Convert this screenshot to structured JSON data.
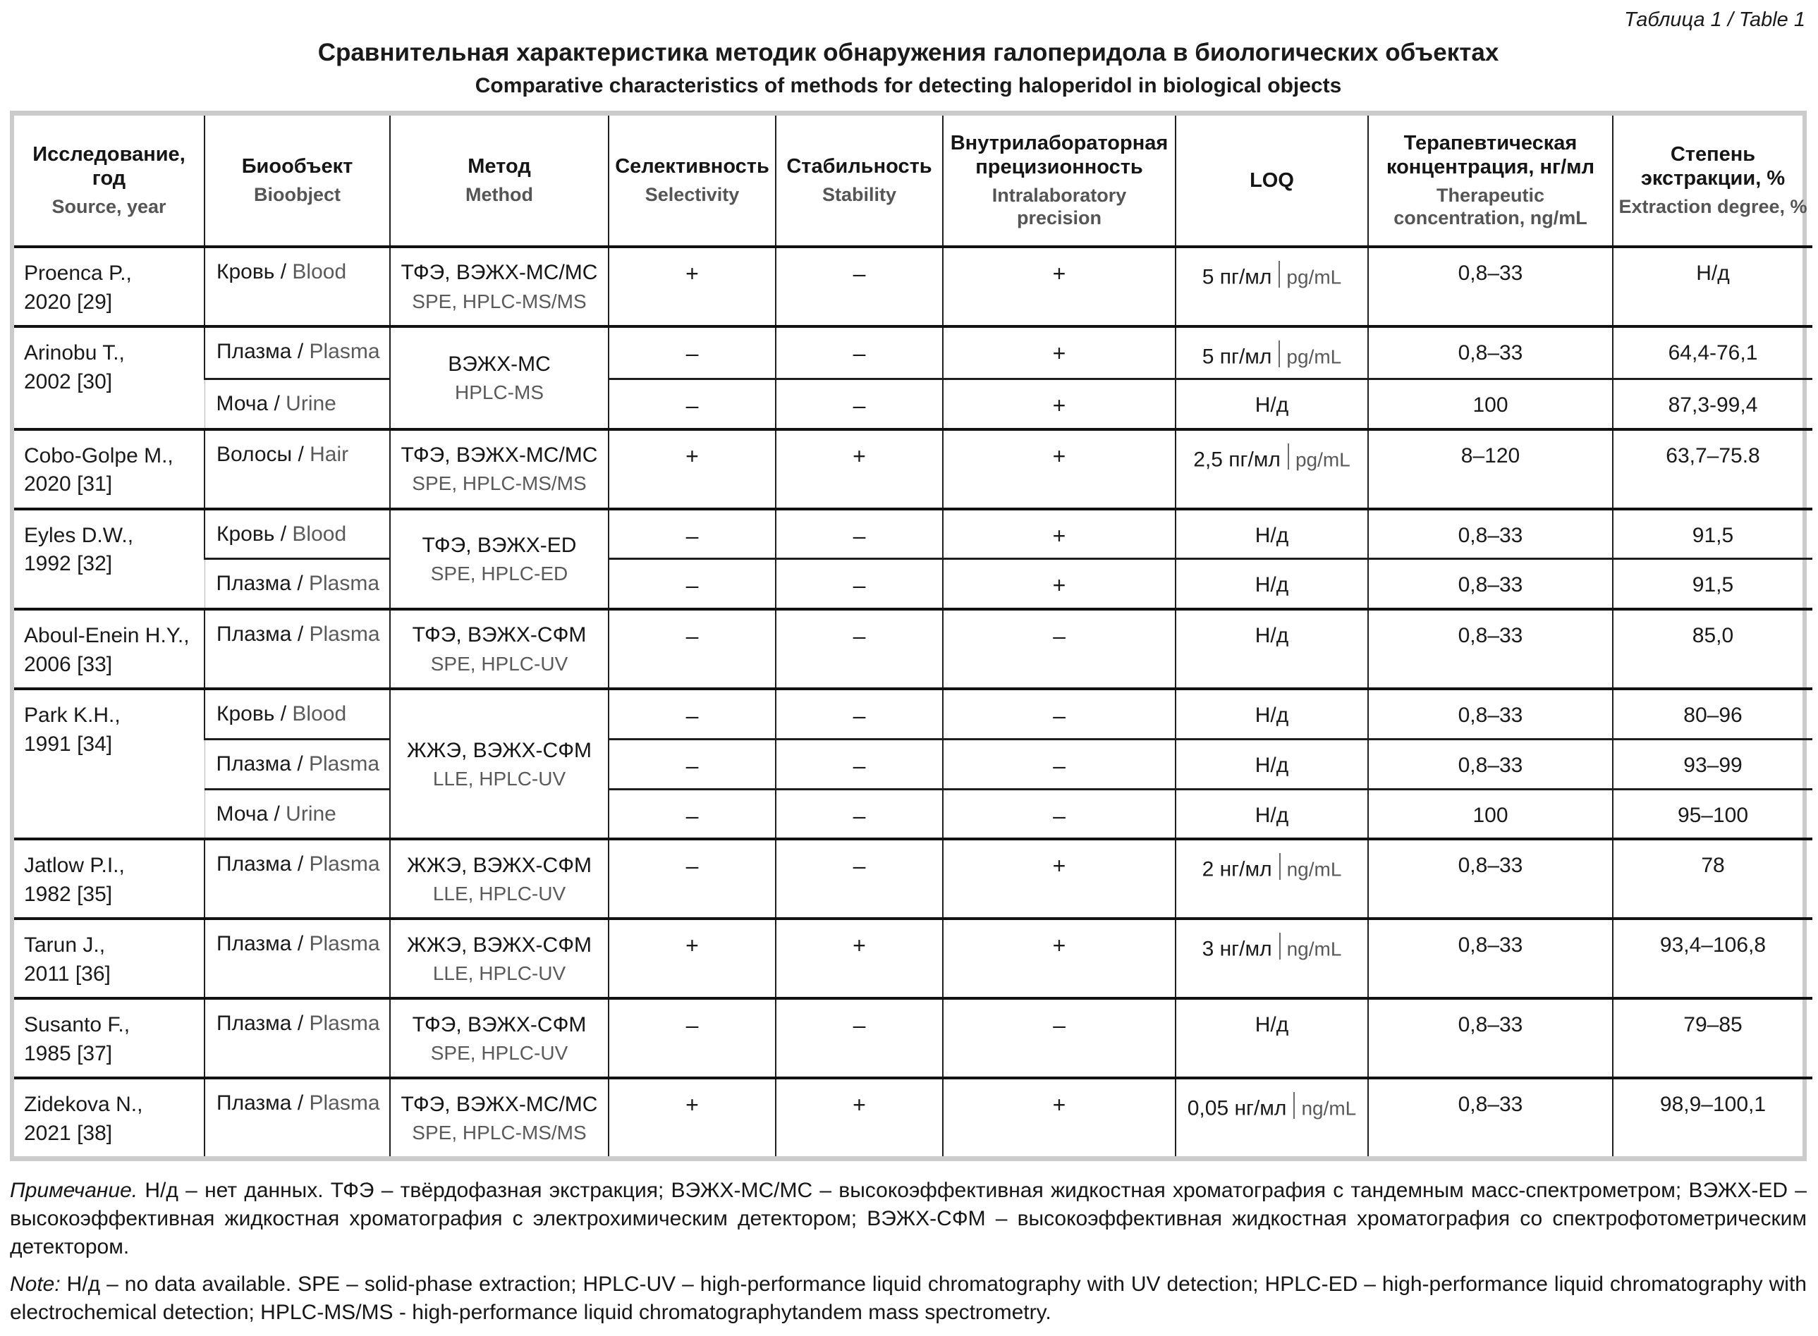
{
  "page": {
    "table_label": "Таблица 1 / Table 1",
    "title_ru": "Сравнительная характеристика методик обнаружения галоперидола в биологических объектах",
    "title_en": "Comparative characteristics of methods for detecting haloperidol in biological objects"
  },
  "header": {
    "source": {
      "ru": "Исследование,\nгод",
      "en": "Source, year"
    },
    "bioobject": {
      "ru": "Биообъект",
      "en": "Bioobject"
    },
    "method": {
      "ru": "Метод",
      "en": "Method"
    },
    "selectivity": {
      "ru": "Селективность",
      "en": "Selectivity"
    },
    "stability": {
      "ru": "Стабильность",
      "en": "Stability"
    },
    "precision": {
      "ru": "Внутрилабораторная прецизионность",
      "en": "Intralaboratory precision"
    },
    "loq": {
      "ru": "LOQ",
      "en": ""
    },
    "concentration": {
      "ru": "Терапевтическая концентрация, нг/мл",
      "en": "Therapeutic concentration, ng/mL"
    },
    "extraction": {
      "ru": "Степень экстракции, %",
      "en": "Extraction degree, %"
    }
  },
  "groups": [
    {
      "source": "Proenca P.,\n2020 [29]",
      "method_ru": "ТФЭ, ВЭЖХ-МС/МС",
      "method_en": "SPE, HPLC-MS/MS",
      "rows": [
        {
          "bio_ru": "Кровь",
          "bio_en": "Blood",
          "sel": "+",
          "stab": "–",
          "prec": "+",
          "loq_ru": "5 пг/мл",
          "loq_en": "pg/mL",
          "conc": "0,8–33",
          "extr": "Н/д"
        }
      ]
    },
    {
      "source": "Arinobu T.,\n2002 [30]",
      "method_ru": "ВЭЖХ-МС",
      "method_en": "HPLC-MS",
      "rows": [
        {
          "bio_ru": "Плазма",
          "bio_en": "Plasma",
          "sel": "–",
          "stab": "–",
          "prec": "+",
          "loq_ru": "5 пг/мл",
          "loq_en": "pg/mL",
          "conc": "0,8–33",
          "extr": "64,4-76,1"
        },
        {
          "bio_ru": "Моча",
          "bio_en": "Urine",
          "sel": "–",
          "stab": "–",
          "prec": "+",
          "loq_ru": "Н/д",
          "loq_en": "",
          "conc": "100",
          "extr": "87,3-99,4"
        }
      ]
    },
    {
      "source": "Cobo-Golpe M.,\n2020 [31]",
      "method_ru": "ТФЭ, ВЭЖХ-МС/МС",
      "method_en": "SPE, HPLC-MS/MS",
      "rows": [
        {
          "bio_ru": "Волосы",
          "bio_en": "Hair",
          "sel": "+",
          "stab": "+",
          "prec": "+",
          "loq_ru": "2,5 пг/мл",
          "loq_en": "pg/mL",
          "conc": "8–120",
          "extr": "63,7–75.8"
        }
      ]
    },
    {
      "source": "Eyles D.W.,\n1992 [32]",
      "method_ru": "ТФЭ, ВЭЖХ-ED",
      "method_en": "SPE, HPLC-ED",
      "rows": [
        {
          "bio_ru": "Кровь",
          "bio_en": "Blood",
          "sel": "–",
          "stab": "–",
          "prec": "+",
          "loq_ru": "Н/д",
          "loq_en": "",
          "conc": "0,8–33",
          "extr": "91,5"
        },
        {
          "bio_ru": "Плазма",
          "bio_en": "Plasma",
          "sel": "–",
          "stab": "–",
          "prec": "+",
          "loq_ru": "Н/д",
          "loq_en": "",
          "conc": "0,8–33",
          "extr": "91,5"
        }
      ]
    },
    {
      "source": "Aboul-Enein H.Y.,\n2006 [33]",
      "method_ru": "ТФЭ, ВЭЖХ-СФМ",
      "method_en": "SPE, HPLC-UV",
      "rows": [
        {
          "bio_ru": "Плазма",
          "bio_en": "Plasma",
          "sel": "–",
          "stab": "–",
          "prec": "–",
          "loq_ru": "Н/д",
          "loq_en": "",
          "conc": "0,8–33",
          "extr": "85,0"
        }
      ]
    },
    {
      "source": "Park K.H.,\n1991 [34]",
      "method_ru": "ЖЖЭ, ВЭЖХ-СФМ",
      "method_en": "LLE, HPLC-UV",
      "rows": [
        {
          "bio_ru": "Кровь",
          "bio_en": "Blood",
          "sel": "–",
          "stab": "–",
          "prec": "–",
          "loq_ru": "Н/д",
          "loq_en": "",
          "conc": "0,8–33",
          "extr": "80–96"
        },
        {
          "bio_ru": "Плазма",
          "bio_en": "Plasma",
          "sel": "–",
          "stab": "–",
          "prec": "–",
          "loq_ru": "Н/д",
          "loq_en": "",
          "conc": "0,8–33",
          "extr": "93–99"
        },
        {
          "bio_ru": "Моча",
          "bio_en": "Urine",
          "sel": "–",
          "stab": "–",
          "prec": "–",
          "loq_ru": "Н/д",
          "loq_en": "",
          "conc": "100",
          "extr": "95–100"
        }
      ]
    },
    {
      "source": "Jatlow P.I.,\n1982 [35]",
      "method_ru": "ЖЖЭ, ВЭЖХ-СФМ",
      "method_en": "LLE, HPLC-UV",
      "rows": [
        {
          "bio_ru": "Плазма",
          "bio_en": "Plasma",
          "sel": "–",
          "stab": "–",
          "prec": "+",
          "loq_ru": "2 нг/мл",
          "loq_en": "ng/mL",
          "conc": "0,8–33",
          "extr": "78"
        }
      ]
    },
    {
      "source": "Tarun J.,\n2011 [36]",
      "method_ru": "ЖЖЭ, ВЭЖХ-СФМ",
      "method_en": "LLE, HPLC-UV",
      "rows": [
        {
          "bio_ru": "Плазма",
          "bio_en": "Plasma",
          "sel": "+",
          "stab": "+",
          "prec": "+",
          "loq_ru": "3 нг/мл",
          "loq_en": "ng/mL",
          "conc": "0,8–33",
          "extr": "93,4–106,8"
        }
      ]
    },
    {
      "source": "Susanto F.,\n1985 [37]",
      "method_ru": "ТФЭ, ВЭЖХ-СФМ",
      "method_en": "SPE, HPLC-UV",
      "rows": [
        {
          "bio_ru": "Плазма",
          "bio_en": "Plasma",
          "sel": "–",
          "stab": "–",
          "prec": "–",
          "loq_ru": "Н/д",
          "loq_en": "",
          "conc": "0,8–33",
          "extr": "79–85"
        }
      ]
    },
    {
      "source": "Zidekova N.,\n2021 [38]",
      "method_ru": "ТФЭ, ВЭЖХ-МС/МС",
      "method_en": "SPE, HPLC-MS/MS",
      "rows": [
        {
          "bio_ru": "Плазма",
          "bio_en": "Plasma",
          "sel": "+",
          "stab": "+",
          "prec": "+",
          "loq_ru": "0,05 нг/мл",
          "loq_en": "ng/mL",
          "conc": "0,8–33",
          "extr": "98,9–100,1"
        }
      ]
    }
  ],
  "notes": {
    "ru_label": "Примечание.",
    "ru_text": " Н/д – нет данных. ТФЭ – твёрдофазная экстракция; ВЭЖХ-МС/МС – высокоэффективная жидкостная хроматография с тандемным масс-спектрометром; ВЭЖХ-ED – высокоэффективная жидкостная хроматография с электрохимическим детектором; ВЭЖХ-СФМ – высокоэффективная жидкостная хроматография со спектрофотометрическим детектором.",
    "en_label": "Note:",
    "en_text": " Н/д – no data available. SPE – solid-phase extraction; HPLC-UV – high-performance liquid chromatography with UV detection; HPLC-ED – high-performance liquid chromatography with electrochemical detection; HPLC-MS/MS - high-performance liquid chromatographytandem mass spectrometry."
  }
}
